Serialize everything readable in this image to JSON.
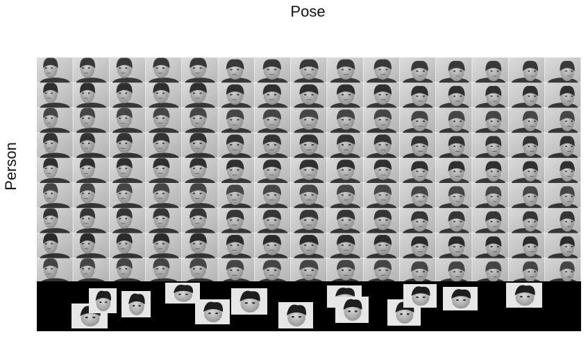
{
  "figure": {
    "x_axis_label": "Pose",
    "y_axis_label": "Person"
  },
  "grid": {
    "rows": 10,
    "cols": 15,
    "row_tones": [
      "#8a8a8a",
      "#7a7a7a",
      "#6c6c6c",
      "#5e5e5e",
      "#808080",
      "#6a6a6a",
      "#727272",
      "#5a5a5a",
      "#646464",
      "#7c7c7c"
    ]
  },
  "composite": {
    "image_count": 13,
    "background": "#000000"
  }
}
